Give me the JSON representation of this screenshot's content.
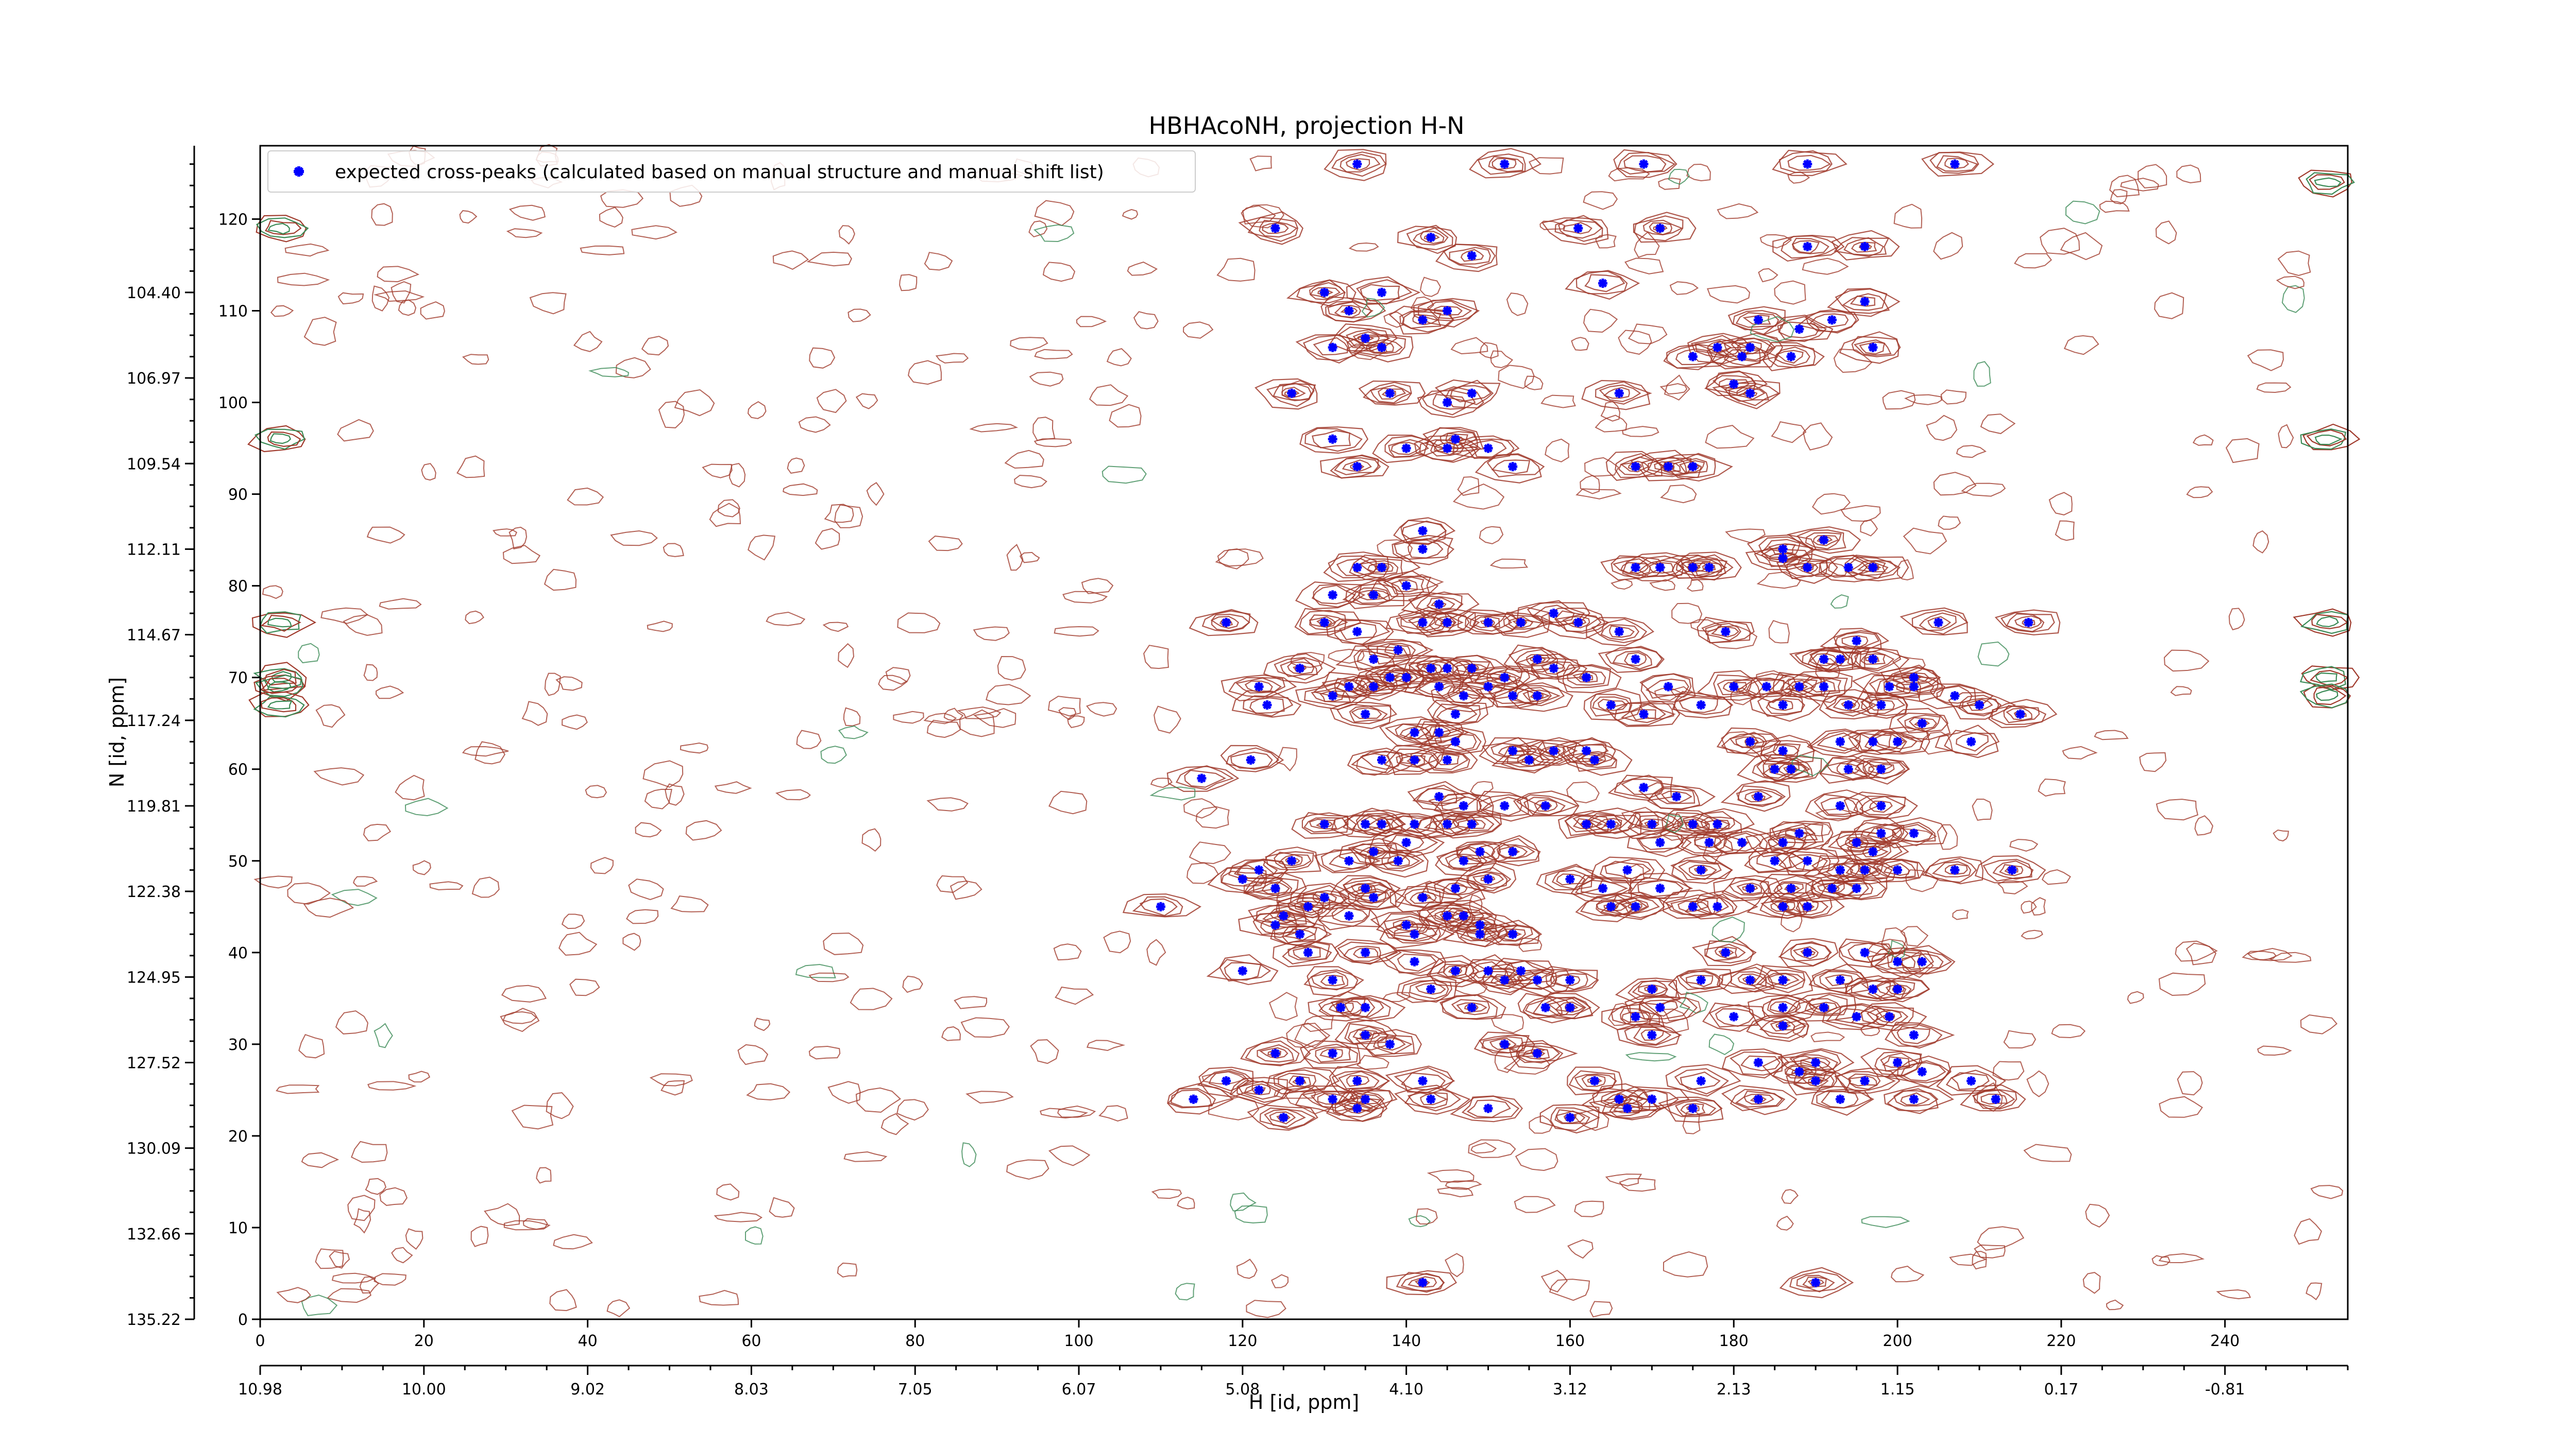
{
  "chart_data": {
    "type": "scatter",
    "title": "HBHAcoNH, projection H-N",
    "xlabel": "H [id, ppm]",
    "ylabel": "N [id, ppm]",
    "xlim": [
      0,
      255
    ],
    "ylim": [
      0,
      128
    ],
    "grid": false,
    "legend_position": "top-left",
    "colors": {
      "peaks": "#0000ff",
      "positive_contours": "#a0392b",
      "negative_contours": "#3a8a55",
      "axes": "#000000"
    },
    "x_index_ticks": [
      "0",
      "20",
      "40",
      "60",
      "80",
      "100",
      "120",
      "140",
      "160",
      "180",
      "200",
      "220",
      "240"
    ],
    "x_index_values": [
      0,
      20,
      40,
      60,
      80,
      100,
      120,
      140,
      160,
      180,
      200,
      220,
      240
    ],
    "x_ppm_ticks": [
      "10.98",
      "10.00",
      "9.02",
      "8.03",
      "7.05",
      "6.07",
      "5.08",
      "4.10",
      "3.12",
      "2.13",
      "1.15",
      "0.17",
      "-0.81"
    ],
    "x_ppm_values": [
      0,
      20,
      40,
      60,
      80,
      100,
      120,
      140,
      160,
      180,
      200,
      220,
      240
    ],
    "y_index_ticks": [
      "0",
      "10",
      "20",
      "30",
      "40",
      "50",
      "60",
      "70",
      "80",
      "90",
      "100",
      "110",
      "120"
    ],
    "y_index_values": [
      0,
      10,
      20,
      30,
      40,
      50,
      60,
      70,
      80,
      90,
      100,
      110,
      120
    ],
    "y_ppm_ticks": [
      "135.22",
      "132.66",
      "130.09",
      "127.52",
      "124.95",
      "122.38",
      "119.81",
      "117.24",
      "114.67",
      "112.11",
      "109.54",
      "106.97",
      "104.40"
    ],
    "y_ppm_values": [
      0,
      9.33,
      18.67,
      28,
      37.33,
      46.67,
      56,
      65.33,
      74.67,
      84,
      93.33,
      102.67,
      112
    ],
    "series": [
      {
        "name": "expected cross-peaks (calculated based on manual structure and manual shift list)",
        "points": [
          [
            134,
            126
          ],
          [
            152,
            126
          ],
          [
            169,
            126
          ],
          [
            189,
            126
          ],
          [
            207,
            126
          ],
          [
            124,
            119
          ],
          [
            161,
            119
          ],
          [
            171,
            119
          ],
          [
            189,
            117
          ],
          [
            196,
            117
          ],
          [
            143,
            118
          ],
          [
            148,
            116
          ],
          [
            164,
            113
          ],
          [
            130,
            112
          ],
          [
            137,
            112
          ],
          [
            133,
            110
          ],
          [
            145,
            110
          ],
          [
            142,
            109
          ],
          [
            196,
            111
          ],
          [
            183,
            109
          ],
          [
            188,
            108
          ],
          [
            192,
            109
          ],
          [
            135,
            107
          ],
          [
            137,
            106
          ],
          [
            131,
            106
          ],
          [
            178,
            106
          ],
          [
            182,
            106
          ],
          [
            187,
            105
          ],
          [
            197,
            106
          ],
          [
            175,
            105
          ],
          [
            181,
            105
          ],
          [
            126,
            101
          ],
          [
            138,
            101
          ],
          [
            145,
            100
          ],
          [
            148,
            101
          ],
          [
            180,
            102
          ],
          [
            166,
            101
          ],
          [
            182,
            101
          ],
          [
            131,
            96
          ],
          [
            140,
            95
          ],
          [
            145,
            95
          ],
          [
            146,
            96
          ],
          [
            150,
            95
          ],
          [
            134,
            93
          ],
          [
            153,
            93
          ],
          [
            168,
            93
          ],
          [
            172,
            93
          ],
          [
            175,
            93
          ],
          [
            142,
            86
          ],
          [
            142,
            84
          ],
          [
            186,
            84
          ],
          [
            191,
            85
          ],
          [
            186,
            83
          ],
          [
            134,
            82
          ],
          [
            137,
            82
          ],
          [
            140,
            80
          ],
          [
            168,
            82
          ],
          [
            171,
            82
          ],
          [
            175,
            82
          ],
          [
            177,
            82
          ],
          [
            189,
            82
          ],
          [
            194,
            82
          ],
          [
            197,
            82
          ],
          [
            131,
            79
          ],
          [
            136,
            79
          ],
          [
            144,
            78
          ],
          [
            130,
            76
          ],
          [
            142,
            76
          ],
          [
            145,
            76
          ],
          [
            150,
            76
          ],
          [
            154,
            76
          ],
          [
            158,
            77
          ],
          [
            161,
            76
          ],
          [
            134,
            75
          ],
          [
            166,
            75
          ],
          [
            179,
            75
          ],
          [
            195,
            74
          ],
          [
            205,
            76
          ],
          [
            216,
            76
          ],
          [
            118,
            76
          ],
          [
            136,
            72
          ],
          [
            139,
            73
          ],
          [
            138,
            70
          ],
          [
            143,
            71
          ],
          [
            145,
            71
          ],
          [
            148,
            71
          ],
          [
            152,
            70
          ],
          [
            158,
            71
          ],
          [
            156,
            72
          ],
          [
            168,
            72
          ],
          [
            191,
            72
          ],
          [
            193,
            72
          ],
          [
            197,
            72
          ],
          [
            202,
            70
          ],
          [
            122,
            69
          ],
          [
            127,
            71
          ],
          [
            131,
            68
          ],
          [
            133,
            69
          ],
          [
            136,
            69
          ],
          [
            140,
            70
          ],
          [
            144,
            69
          ],
          [
            147,
            68
          ],
          [
            150,
            69
          ],
          [
            153,
            68
          ],
          [
            156,
            68
          ],
          [
            162,
            70
          ],
          [
            172,
            69
          ],
          [
            180,
            69
          ],
          [
            184,
            69
          ],
          [
            188,
            69
          ],
          [
            191,
            69
          ],
          [
            199,
            69
          ],
          [
            202,
            69
          ],
          [
            207,
            68
          ],
          [
            210,
            67
          ],
          [
            215,
            66
          ],
          [
            123,
            67
          ],
          [
            135,
            66
          ],
          [
            146,
            66
          ],
          [
            176,
            67
          ],
          [
            186,
            67
          ],
          [
            194,
            67
          ],
          [
            198,
            67
          ],
          [
            141,
            64
          ],
          [
            144,
            64
          ],
          [
            146,
            63
          ],
          [
            153,
            62
          ],
          [
            158,
            62
          ],
          [
            162,
            62
          ],
          [
            165,
            67
          ],
          [
            169,
            66
          ],
          [
            203,
            65
          ],
          [
            193,
            63
          ],
          [
            197,
            63
          ],
          [
            200,
            63
          ],
          [
            209,
            63
          ],
          [
            115,
            59
          ],
          [
            121,
            61
          ],
          [
            137,
            61
          ],
          [
            141,
            61
          ],
          [
            145,
            61
          ],
          [
            155,
            61
          ],
          [
            163,
            61
          ],
          [
            182,
            63
          ],
          [
            186,
            62
          ],
          [
            185,
            60
          ],
          [
            187,
            60
          ],
          [
            194,
            60
          ],
          [
            198,
            60
          ],
          [
            144,
            57
          ],
          [
            147,
            56
          ],
          [
            152,
            56
          ],
          [
            157,
            56
          ],
          [
            169,
            58
          ],
          [
            173,
            57
          ],
          [
            183,
            57
          ],
          [
            193,
            56
          ],
          [
            198,
            56
          ],
          [
            130,
            54
          ],
          [
            135,
            54
          ],
          [
            137,
            54
          ],
          [
            141,
            54
          ],
          [
            145,
            54
          ],
          [
            148,
            54
          ],
          [
            162,
            54
          ],
          [
            165,
            54
          ],
          [
            170,
            54
          ],
          [
            175,
            54
          ],
          [
            178,
            54
          ],
          [
            181,
            52
          ],
          [
            188,
            53
          ],
          [
            195,
            52
          ],
          [
            198,
            53
          ],
          [
            202,
            53
          ],
          [
            136,
            51
          ],
          [
            140,
            52
          ],
          [
            149,
            51
          ],
          [
            153,
            51
          ],
          [
            171,
            52
          ],
          [
            177,
            52
          ],
          [
            186,
            52
          ],
          [
            197,
            51
          ],
          [
            122,
            49
          ],
          [
            126,
            50
          ],
          [
            133,
            50
          ],
          [
            139,
            50
          ],
          [
            147,
            50
          ],
          [
            167,
            49
          ],
          [
            176,
            49
          ],
          [
            185,
            50
          ],
          [
            189,
            50
          ],
          [
            193,
            49
          ],
          [
            196,
            49
          ],
          [
            200,
            49
          ],
          [
            207,
            49
          ],
          [
            214,
            49
          ],
          [
            120,
            48
          ],
          [
            124,
            47
          ],
          [
            130,
            46
          ],
          [
            135,
            47
          ],
          [
            136,
            46
          ],
          [
            142,
            46
          ],
          [
            146,
            47
          ],
          [
            150,
            48
          ],
          [
            160,
            48
          ],
          [
            164,
            47
          ],
          [
            171,
            47
          ],
          [
            182,
            47
          ],
          [
            187,
            47
          ],
          [
            192,
            47
          ],
          [
            195,
            47
          ],
          [
            110,
            45
          ],
          [
            125,
            44
          ],
          [
            128,
            45
          ],
          [
            133,
            44
          ],
          [
            140,
            43
          ],
          [
            145,
            44
          ],
          [
            147,
            44
          ],
          [
            149,
            43
          ],
          [
            165,
            45
          ],
          [
            168,
            45
          ],
          [
            175,
            45
          ],
          [
            178,
            45
          ],
          [
            186,
            45
          ],
          [
            189,
            45
          ],
          [
            124,
            43
          ],
          [
            127,
            42
          ],
          [
            141,
            42
          ],
          [
            149,
            42
          ],
          [
            153,
            42
          ],
          [
            128,
            40
          ],
          [
            135,
            40
          ],
          [
            141,
            39
          ],
          [
            146,
            38
          ],
          [
            150,
            38
          ],
          [
            154,
            38
          ],
          [
            179,
            40
          ],
          [
            189,
            40
          ],
          [
            196,
            40
          ],
          [
            200,
            39
          ],
          [
            203,
            39
          ],
          [
            120,
            38
          ],
          [
            131,
            37
          ],
          [
            143,
            36
          ],
          [
            152,
            37
          ],
          [
            156,
            37
          ],
          [
            160,
            37
          ],
          [
            170,
            36
          ],
          [
            176,
            37
          ],
          [
            182,
            37
          ],
          [
            186,
            37
          ],
          [
            193,
            37
          ],
          [
            197,
            36
          ],
          [
            200,
            36
          ],
          [
            132,
            34
          ],
          [
            135,
            34
          ],
          [
            148,
            34
          ],
          [
            157,
            34
          ],
          [
            160,
            34
          ],
          [
            168,
            33
          ],
          [
            171,
            34
          ],
          [
            180,
            33
          ],
          [
            186,
            34
          ],
          [
            191,
            34
          ],
          [
            195,
            33
          ],
          [
            199,
            33
          ],
          [
            135,
            31
          ],
          [
            138,
            30
          ],
          [
            152,
            30
          ],
          [
            170,
            31
          ],
          [
            186,
            32
          ],
          [
            202,
            31
          ],
          [
            124,
            29
          ],
          [
            131,
            29
          ],
          [
            156,
            29
          ],
          [
            183,
            28
          ],
          [
            190,
            28
          ],
          [
            200,
            28
          ],
          [
            118,
            26
          ],
          [
            127,
            26
          ],
          [
            134,
            26
          ],
          [
            142,
            26
          ],
          [
            163,
            26
          ],
          [
            176,
            26
          ],
          [
            188,
            27
          ],
          [
            190,
            26
          ],
          [
            196,
            26
          ],
          [
            203,
            27
          ],
          [
            209,
            26
          ],
          [
            114,
            24
          ],
          [
            122,
            25
          ],
          [
            131,
            24
          ],
          [
            135,
            24
          ],
          [
            143,
            24
          ],
          [
            166,
            24
          ],
          [
            170,
            24
          ],
          [
            183,
            24
          ],
          [
            193,
            24
          ],
          [
            202,
            24
          ],
          [
            212,
            24
          ],
          [
            125,
            22
          ],
          [
            134,
            23
          ],
          [
            150,
            23
          ],
          [
            160,
            22
          ],
          [
            167,
            23
          ],
          [
            175,
            23
          ],
          [
            142,
            4
          ],
          [
            190,
            4
          ]
        ]
      }
    ]
  }
}
